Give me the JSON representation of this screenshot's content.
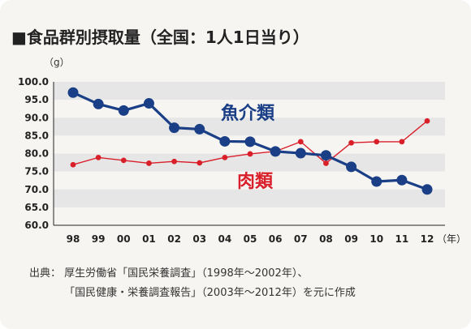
{
  "title": "■食品群別摂取量（全国：1人1日当り）",
  "y_unit": "（g）",
  "source": {
    "label": "出典：",
    "line1": "厚生労働省「国民栄養調査」（1998年～2002年）、",
    "line2": "「国民健康・栄養調査報告」（2003年～2012年）を元に作成"
  },
  "colors": {
    "fish": "#1a3f86",
    "meat": "#d91f2a",
    "band": "#e6e6e6",
    "background": "#f7f5f2"
  },
  "chart_data": {
    "type": "line",
    "title": "■食品群別摂取量（全国：1人1日当り）",
    "xlabel": "（年）",
    "ylabel": "（g）",
    "ylim": [
      60,
      100
    ],
    "yticks": [
      "60.0",
      "65.0",
      "70.0",
      "75.0",
      "80.0",
      "85.0",
      "90.0",
      "95.0",
      "100.0"
    ],
    "categories": [
      "98",
      "99",
      "00",
      "01",
      "02",
      "03",
      "04",
      "05",
      "06",
      "07",
      "08",
      "09",
      "10",
      "11",
      "12"
    ],
    "grid": "alternating horizontal bands",
    "series": [
      {
        "name": "魚介類",
        "color": "#1a3f86",
        "values": [
          97.0,
          93.8,
          92.0,
          94.0,
          87.2,
          86.8,
          83.4,
          83.3,
          80.6,
          80.1,
          79.5,
          76.3,
          72.2,
          72.6,
          70.0
        ]
      },
      {
        "name": "肉類",
        "color": "#d91f2a",
        "values": [
          76.9,
          78.9,
          78.1,
          77.3,
          77.8,
          77.4,
          78.9,
          79.9,
          80.6,
          83.3,
          77.3,
          83.0,
          83.3,
          83.3,
          89.1
        ]
      }
    ]
  }
}
